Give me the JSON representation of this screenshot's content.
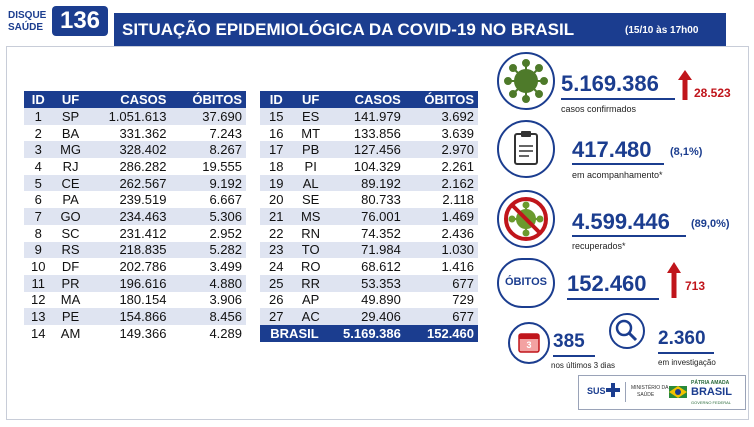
{
  "header": {
    "disque_line1": "DISQUE",
    "disque_line2": "SAÚDE",
    "disque_number": "136",
    "title": "SITUAÇÃO EPIDEMIOLÓGICA DA COVID-19 NO BRASIL",
    "date": "(15/10 às 17h00"
  },
  "table": {
    "headers": [
      "ID",
      "UF",
      "CASOS",
      "ÓBITOS"
    ],
    "rows_left": [
      [
        "1",
        "SP",
        "1.051.613",
        "37.690"
      ],
      [
        "2",
        "BA",
        "331.362",
        "7.243"
      ],
      [
        "3",
        "MG",
        "328.402",
        "8.267"
      ],
      [
        "4",
        "RJ",
        "286.282",
        "19.555"
      ],
      [
        "5",
        "CE",
        "262.567",
        "9.192"
      ],
      [
        "6",
        "PA",
        "239.519",
        "6.667"
      ],
      [
        "7",
        "GO",
        "234.463",
        "5.306"
      ],
      [
        "8",
        "SC",
        "231.412",
        "2.952"
      ],
      [
        "9",
        "RS",
        "218.835",
        "5.282"
      ],
      [
        "10",
        "DF",
        "202.786",
        "3.499"
      ],
      [
        "11",
        "PR",
        "196.616",
        "4.880"
      ],
      [
        "12",
        "MA",
        "180.154",
        "3.906"
      ],
      [
        "13",
        "PE",
        "154.866",
        "8.456"
      ],
      [
        "14",
        "AM",
        "149.366",
        "4.289"
      ]
    ],
    "rows_right": [
      [
        "15",
        "ES",
        "141.979",
        "3.692"
      ],
      [
        "16",
        "MT",
        "133.856",
        "3.639"
      ],
      [
        "17",
        "PB",
        "127.456",
        "2.970"
      ],
      [
        "18",
        "PI",
        "104.329",
        "2.261"
      ],
      [
        "19",
        "AL",
        "89.192",
        "2.162"
      ],
      [
        "20",
        "SE",
        "80.733",
        "2.118"
      ],
      [
        "21",
        "MS",
        "76.001",
        "1.469"
      ],
      [
        "22",
        "RN",
        "74.352",
        "2.436"
      ],
      [
        "23",
        "TO",
        "71.984",
        "1.030"
      ],
      [
        "24",
        "RO",
        "68.612",
        "1.416"
      ],
      [
        "25",
        "RR",
        "53.353",
        "677"
      ],
      [
        "26",
        "AP",
        "49.890",
        "729"
      ],
      [
        "27",
        "AC",
        "29.406",
        "677"
      ]
    ],
    "total": {
      "label": "BRASIL",
      "casos": "5.169.386",
      "obitos": "152.460"
    }
  },
  "stats": {
    "confirmados": {
      "value": "5.169.386",
      "increase": "28.523",
      "label": "casos confirmados"
    },
    "acompanhamento": {
      "value": "417.480",
      "pct": "(8,1%)",
      "label": "em acompanhamento*"
    },
    "recuperados": {
      "value": "4.599.446",
      "pct": "(89,0%)",
      "label": "recuperados*"
    },
    "obitos": {
      "badge": "ÓBITOS",
      "value": "152.460",
      "increase": "713"
    },
    "ultimos": {
      "value": "385",
      "label": "nos últimos 3 dias",
      "icon_label": "3"
    },
    "investigacao": {
      "value": "2.360",
      "label": "em investigação"
    }
  },
  "footer": {
    "sus": "SUS",
    "ministerio_line1": "MINISTÉRIO DA",
    "ministerio_line2": "SAÚDE",
    "gov_line1": "PÁTRIA AMADA",
    "gov_line2": "BRASIL",
    "gov_line3": "GOVERNO FEDERAL"
  },
  "colors": {
    "brand": "#1b3d8f",
    "alert": "#c0151b",
    "row_alt": "#dfe4f1"
  }
}
